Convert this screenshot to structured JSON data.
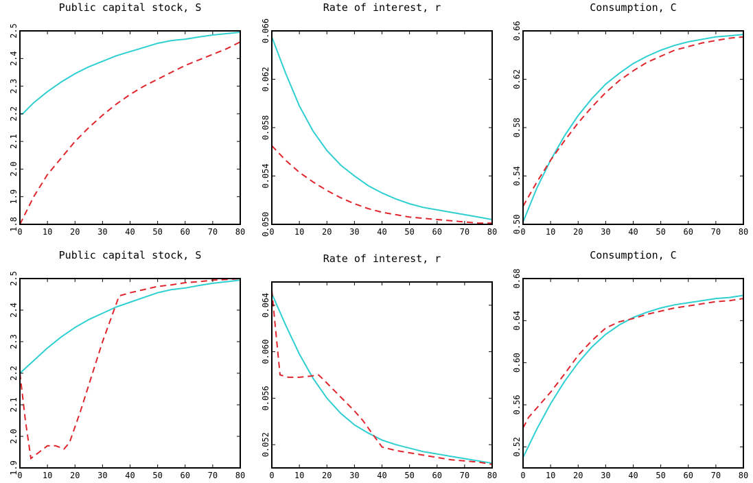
{
  "colors": {
    "solid": "#2ECFD1",
    "dashed": "#E0242B",
    "axis": "#000000"
  },
  "chart_data": [
    {
      "type": "line",
      "title": "Public capital stock, S",
      "xlim": [
        0,
        80
      ],
      "ylim": [
        1.8,
        2.5
      ],
      "xticks": [
        0,
        10,
        20,
        30,
        40,
        50,
        60,
        70,
        80
      ],
      "yticks": [
        1.8,
        1.9,
        2.0,
        2.1,
        2.2,
        2.3,
        2.4,
        2.5
      ],
      "ytick_labels": [
        "1.8",
        "1.9",
        "2.0",
        "2.1",
        "2.2",
        "2.3",
        "2.4",
        "2.5"
      ],
      "series": [
        {
          "style": "solid",
          "x": [
            0,
            1,
            2,
            5,
            10,
            15,
            20,
            25,
            30,
            35,
            40,
            45,
            50,
            55,
            60,
            65,
            70,
            75,
            80
          ],
          "y": [
            2.2,
            2.2,
            2.21,
            2.24,
            2.28,
            2.315,
            2.345,
            2.37,
            2.39,
            2.41,
            2.425,
            2.44,
            2.455,
            2.465,
            2.47,
            2.478,
            2.485,
            2.49,
            2.495
          ]
        },
        {
          "style": "dashed",
          "x": [
            0,
            5,
            10,
            15,
            20,
            25,
            30,
            35,
            40,
            45,
            50,
            55,
            60,
            65,
            70,
            75,
            80
          ],
          "y": [
            1.8,
            1.9,
            1.98,
            2.04,
            2.1,
            2.15,
            2.195,
            2.235,
            2.27,
            2.3,
            2.325,
            2.35,
            2.375,
            2.395,
            2.415,
            2.435,
            2.46
          ]
        }
      ]
    },
    {
      "type": "line",
      "title": "Rate of interest, r",
      "xlim": [
        0,
        80
      ],
      "ylim": [
        0.05,
        0.066
      ],
      "xticks": [
        0,
        10,
        20,
        30,
        40,
        50,
        60,
        70,
        80
      ],
      "yticks": [
        0.05,
        0.054,
        0.058,
        0.062,
        0.066
      ],
      "ytick_labels": [
        "0.050",
        "0.054",
        "0.058",
        "0.062",
        "0.066"
      ],
      "series": [
        {
          "style": "solid",
          "x": [
            0,
            5,
            10,
            15,
            20,
            25,
            30,
            35,
            40,
            45,
            50,
            55,
            60,
            65,
            70,
            75,
            80
          ],
          "y": [
            0.0655,
            0.0625,
            0.0598,
            0.0577,
            0.0561,
            0.0549,
            0.054,
            0.0532,
            0.0526,
            0.0521,
            0.0517,
            0.0514,
            0.0512,
            0.051,
            0.0508,
            0.0506,
            0.0504
          ]
        },
        {
          "style": "dashed",
          "x": [
            0,
            5,
            10,
            15,
            20,
            25,
            30,
            35,
            40,
            45,
            50,
            55,
            60,
            65,
            70,
            75,
            80
          ],
          "y": [
            0.0565,
            0.0553,
            0.0543,
            0.0535,
            0.0528,
            0.0522,
            0.0517,
            0.0513,
            0.051,
            0.0508,
            0.0506,
            0.0505,
            0.0504,
            0.0503,
            0.0502,
            0.0501,
            0.0501
          ]
        }
      ]
    },
    {
      "type": "line",
      "title": "Consumption, C",
      "xlim": [
        0,
        80
      ],
      "ylim": [
        0.5,
        0.66
      ],
      "xticks": [
        0,
        10,
        20,
        30,
        40,
        50,
        60,
        70,
        80
      ],
      "yticks": [
        0.5,
        0.54,
        0.58,
        0.62,
        0.66
      ],
      "ytick_labels": [
        "0.50",
        "0.54",
        "0.58",
        "0.62",
        "0.66"
      ],
      "series": [
        {
          "style": "solid",
          "x": [
            0,
            5,
            10,
            15,
            20,
            25,
            30,
            35,
            40,
            45,
            50,
            55,
            60,
            65,
            70,
            75,
            80
          ],
          "y": [
            0.502,
            0.53,
            0.553,
            0.573,
            0.59,
            0.604,
            0.616,
            0.625,
            0.633,
            0.639,
            0.644,
            0.648,
            0.651,
            0.653,
            0.655,
            0.656,
            0.657
          ]
        },
        {
          "style": "dashed",
          "x": [
            0,
            5,
            10,
            15,
            20,
            25,
            30,
            35,
            40,
            45,
            50,
            55,
            60,
            65,
            70,
            75,
            80
          ],
          "y": [
            0.515,
            0.535,
            0.553,
            0.569,
            0.584,
            0.597,
            0.609,
            0.619,
            0.627,
            0.634,
            0.639,
            0.644,
            0.647,
            0.65,
            0.652,
            0.654,
            0.655
          ]
        }
      ]
    },
    {
      "type": "line",
      "title": "Public capital stock, S",
      "xlim": [
        0,
        80
      ],
      "ylim": [
        1.9,
        2.5
      ],
      "xticks": [
        0,
        10,
        20,
        30,
        40,
        50,
        60,
        70,
        80
      ],
      "yticks": [
        1.9,
        2.0,
        2.1,
        2.2,
        2.3,
        2.4,
        2.5
      ],
      "ytick_labels": [
        "1.9",
        "2.0",
        "2.1",
        "2.2",
        "2.3",
        "2.4",
        "2.5"
      ],
      "series": [
        {
          "style": "solid",
          "x": [
            0,
            5,
            10,
            15,
            20,
            25,
            30,
            35,
            40,
            45,
            50,
            55,
            60,
            65,
            70,
            75,
            80
          ],
          "y": [
            2.2,
            2.24,
            2.28,
            2.315,
            2.345,
            2.37,
            2.39,
            2.41,
            2.425,
            2.44,
            2.455,
            2.465,
            2.47,
            2.478,
            2.485,
            2.49,
            2.495
          ]
        },
        {
          "style": "dashed",
          "x": [
            0,
            2,
            4,
            7,
            10,
            13,
            16,
            18,
            22,
            26,
            30,
            35,
            36,
            40,
            45,
            50,
            55,
            60,
            65,
            70,
            75,
            80
          ],
          "y": [
            2.2,
            2.05,
            1.93,
            1.95,
            1.97,
            1.97,
            1.96,
            1.98,
            2.08,
            2.19,
            2.3,
            2.42,
            2.445,
            2.455,
            2.465,
            2.475,
            2.48,
            2.487,
            2.49,
            2.495,
            2.497,
            2.5
          ]
        }
      ]
    },
    {
      "type": "line",
      "title": "Rate of interest, r",
      "xlim": [
        0,
        80
      ],
      "ylim": [
        0.05,
        0.066
      ],
      "xticks": [
        0,
        10,
        20,
        30,
        40,
        50,
        60,
        70,
        80
      ],
      "yticks": [
        0.052,
        0.056,
        0.06,
        0.064
      ],
      "ytick_labels": [
        "0.052",
        "0.056",
        "0.060",
        "0.064"
      ],
      "series": [
        {
          "style": "solid",
          "x": [
            0,
            5,
            10,
            15,
            20,
            25,
            30,
            35,
            40,
            45,
            50,
            55,
            60,
            65,
            70,
            75,
            80
          ],
          "y": [
            0.065,
            0.0623,
            0.0598,
            0.0577,
            0.056,
            0.0547,
            0.0537,
            0.053,
            0.0524,
            0.052,
            0.0517,
            0.0514,
            0.0512,
            0.051,
            0.0508,
            0.0506,
            0.0504
          ]
        },
        {
          "style": "dashed",
          "x": [
            0,
            1,
            3,
            6,
            10,
            14,
            17,
            20,
            25,
            30,
            33,
            36,
            40,
            45,
            50,
            55,
            60,
            65,
            70,
            75,
            80
          ],
          "y": [
            0.0653,
            0.0628,
            0.058,
            0.0578,
            0.0578,
            0.0579,
            0.058,
            0.0573,
            0.0561,
            0.0549,
            0.0541,
            0.0531,
            0.0518,
            0.0515,
            0.0513,
            0.0511,
            0.0509,
            0.0507,
            0.0506,
            0.0505,
            0.0503
          ]
        }
      ]
    },
    {
      "type": "line",
      "title": "Consumption, C",
      "xlim": [
        0,
        80
      ],
      "ylim": [
        0.5,
        0.68
      ],
      "xticks": [
        0,
        10,
        20,
        30,
        40,
        50,
        60,
        70,
        80
      ],
      "yticks": [
        0.52,
        0.56,
        0.6,
        0.64,
        0.68
      ],
      "ytick_labels": [
        "0.52",
        "0.56",
        "0.60",
        "0.64",
        "0.68"
      ],
      "series": [
        {
          "style": "solid",
          "x": [
            0,
            5,
            10,
            15,
            20,
            25,
            30,
            35,
            40,
            45,
            50,
            55,
            60,
            65,
            70,
            75,
            80
          ],
          "y": [
            0.51,
            0.537,
            0.561,
            0.582,
            0.6,
            0.615,
            0.627,
            0.636,
            0.643,
            0.648,
            0.652,
            0.655,
            0.657,
            0.659,
            0.661,
            0.662,
            0.664
          ]
        },
        {
          "style": "dashed",
          "x": [
            0,
            2,
            5,
            10,
            15,
            20,
            25,
            30,
            35,
            40,
            45,
            50,
            55,
            60,
            65,
            70,
            75,
            80
          ],
          "y": [
            0.538,
            0.548,
            0.557,
            0.572,
            0.589,
            0.607,
            0.621,
            0.633,
            0.639,
            0.642,
            0.646,
            0.649,
            0.652,
            0.654,
            0.656,
            0.658,
            0.659,
            0.661
          ]
        }
      ]
    }
  ]
}
